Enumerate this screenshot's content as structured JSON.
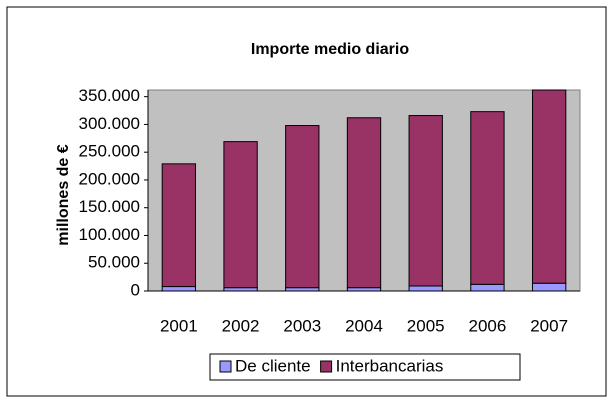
{
  "chart_data": {
    "type": "bar",
    "stacked": true,
    "title": "Importe medio diario",
    "y_label": "millones de €",
    "categories": [
      "2001",
      "2002",
      "2003",
      "2004",
      "2005",
      "2006",
      "2007"
    ],
    "series": [
      {
        "name": "De cliente",
        "color": "#9999ff",
        "values": [
          8000,
          6000,
          6000,
          6000,
          9000,
          12000,
          14000
        ]
      },
      {
        "name": "Interbancarias",
        "color": "#993366",
        "values": [
          221000,
          263000,
          292000,
          306000,
          307000,
          311000,
          348000
        ]
      }
    ],
    "ylim": [
      0,
      362000
    ],
    "yticks": [
      0,
      {
        "value": 50000,
        "label": "50.000"
      },
      {
        "value": 100000,
        "label": "100.000"
      },
      {
        "value": 150000,
        "label": "150.000"
      },
      {
        "value": 200000,
        "label": "200.000"
      },
      {
        "value": 250000,
        "label": "250.000"
      },
      {
        "value": 300000,
        "label": "300.000"
      },
      {
        "value": 350000,
        "label": "350.000"
      }
    ],
    "legend": "bottom"
  }
}
